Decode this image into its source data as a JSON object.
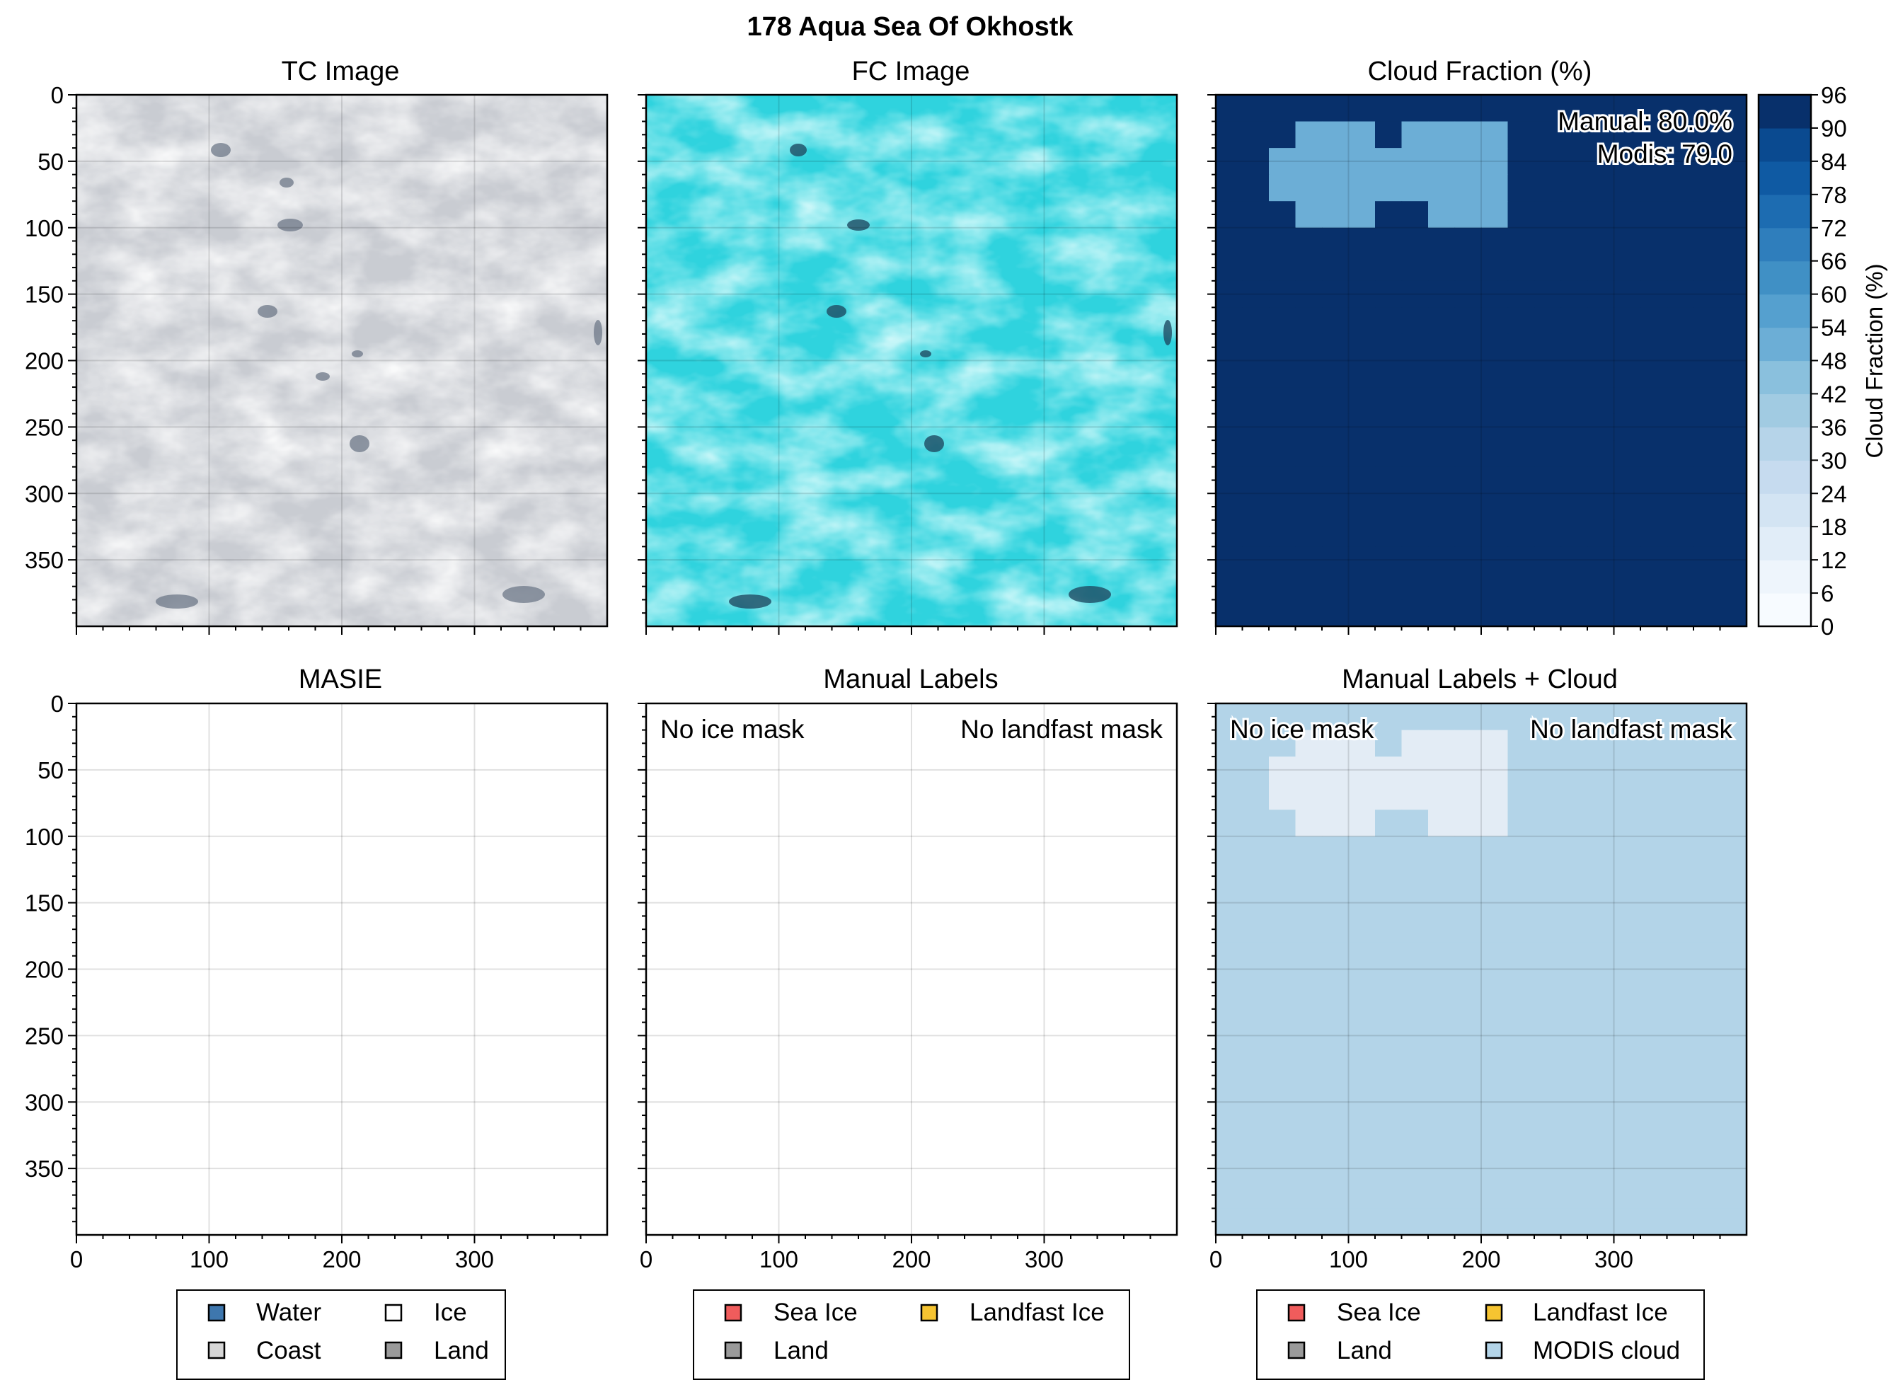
{
  "figure": {
    "title": "178 Aqua Sea Of Okhostk"
  },
  "panels": {
    "tc": {
      "title": "TC Image"
    },
    "fc": {
      "title": "FC Image"
    },
    "cloud": {
      "title": "Cloud Fraction (%)",
      "manual_note": "Manual: 80.0%",
      "modis_note": "Modis: 79.0",
      "colorbar_label": "Cloud Fraction (%)"
    },
    "masie": {
      "title": "MASIE"
    },
    "manual": {
      "title": "Manual Labels",
      "ice_note": "No ice mask",
      "landfast_note": "No landfast mask"
    },
    "manual_cloud": {
      "title": "Manual Labels + Cloud",
      "ice_note": "No ice mask",
      "landfast_note": "No landfast mask"
    }
  },
  "legends": {
    "masie": [
      {
        "label": "Water",
        "color": "#3e77ae"
      },
      {
        "label": "Ice",
        "color": "#ffffff"
      },
      {
        "label": "Coast",
        "color": "#d6d6d6"
      },
      {
        "label": "Land",
        "color": "#9a9a9a"
      }
    ],
    "manual": [
      {
        "label": "Sea Ice",
        "color": "#f05c5c"
      },
      {
        "label": "Landfast Ice",
        "color": "#f6c431"
      },
      {
        "label": "Land",
        "color": "#9a9a9a"
      }
    ],
    "manual_cloud": [
      {
        "label": "Sea Ice",
        "color": "#f05c5c"
      },
      {
        "label": "Landfast Ice",
        "color": "#f6c431"
      },
      {
        "label": "Land",
        "color": "#9a9a9a"
      },
      {
        "label": "MODIS cloud",
        "color": "#b3d4e8"
      }
    ]
  },
  "chart_data": {
    "type": "heatmap",
    "title": "Cloud Fraction (%)",
    "x_ticks": [
      "0",
      "100",
      "200",
      "300"
    ],
    "y_ticks": [
      "0",
      "50",
      "100",
      "150",
      "200",
      "250",
      "300",
      "350"
    ],
    "xlim": [
      0,
      400
    ],
    "ylim": [
      400,
      0
    ],
    "grid": true,
    "colorbar": {
      "label": "Cloud Fraction (%)",
      "ticks": [
        "0",
        "6",
        "12",
        "18",
        "24",
        "30",
        "36",
        "42",
        "48",
        "54",
        "60",
        "66",
        "72",
        "78",
        "84",
        "90",
        "96"
      ],
      "range": [
        0,
        96
      ],
      "colors": [
        "#f7fbff",
        "#eef5fc",
        "#e1edf8",
        "#d3e4f3",
        "#c6dbef",
        "#b6d4e9",
        "#a1cbe2",
        "#8ac0dd",
        "#6caed6",
        "#55a0cf",
        "#4090c5",
        "#2f7ebc",
        "#1d6cb1",
        "#0f5aa3",
        "#0a4a90",
        "#08306b"
      ]
    },
    "cell_size": 20,
    "cloud_fraction_grid": [
      [
        96,
        96,
        96,
        96,
        96,
        96,
        96,
        96,
        96,
        96,
        96,
        96,
        96,
        96,
        96,
        96,
        96,
        96,
        96,
        96
      ],
      [
        96,
        96,
        96,
        50,
        50,
        50,
        96,
        50,
        50,
        50,
        50,
        96,
        96,
        96,
        96,
        96,
        96,
        96,
        96,
        96
      ],
      [
        96,
        96,
        50,
        50,
        50,
        50,
        50,
        50,
        50,
        50,
        50,
        96,
        96,
        96,
        96,
        96,
        96,
        96,
        96,
        96
      ],
      [
        96,
        96,
        50,
        50,
        50,
        50,
        50,
        50,
        50,
        50,
        50,
        96,
        96,
        96,
        96,
        96,
        96,
        96,
        96,
        96
      ],
      [
        96,
        96,
        96,
        50,
        50,
        50,
        96,
        96,
        50,
        50,
        50,
        96,
        96,
        96,
        96,
        96,
        96,
        96,
        96,
        96
      ],
      [
        96,
        96,
        96,
        96,
        96,
        96,
        96,
        96,
        96,
        96,
        96,
        96,
        96,
        96,
        96,
        96,
        96,
        96,
        96,
        96
      ],
      [
        96,
        96,
        96,
        96,
        96,
        96,
        96,
        96,
        96,
        96,
        96,
        96,
        96,
        96,
        96,
        96,
        96,
        96,
        96,
        96
      ],
      [
        96,
        96,
        96,
        96,
        96,
        96,
        96,
        96,
        96,
        96,
        96,
        96,
        96,
        96,
        96,
        96,
        96,
        96,
        96,
        96
      ],
      [
        96,
        96,
        96,
        96,
        96,
        96,
        96,
        96,
        96,
        96,
        96,
        96,
        96,
        96,
        96,
        96,
        96,
        96,
        96,
        96
      ],
      [
        96,
        96,
        96,
        96,
        96,
        96,
        96,
        96,
        96,
        96,
        96,
        96,
        96,
        96,
        96,
        96,
        96,
        96,
        96,
        96
      ],
      [
        96,
        96,
        96,
        96,
        96,
        96,
        96,
        96,
        96,
        96,
        96,
        96,
        96,
        96,
        96,
        96,
        96,
        96,
        96,
        96
      ],
      [
        96,
        96,
        96,
        96,
        96,
        96,
        96,
        96,
        96,
        96,
        96,
        96,
        96,
        96,
        96,
        96,
        96,
        96,
        96,
        96
      ],
      [
        96,
        96,
        96,
        96,
        96,
        96,
        96,
        96,
        96,
        96,
        96,
        96,
        96,
        96,
        96,
        96,
        96,
        96,
        96,
        96
      ],
      [
        96,
        96,
        96,
        96,
        96,
        96,
        96,
        96,
        96,
        96,
        96,
        96,
        96,
        96,
        96,
        96,
        96,
        96,
        96,
        96
      ],
      [
        96,
        96,
        96,
        96,
        96,
        96,
        96,
        96,
        96,
        96,
        96,
        96,
        96,
        96,
        96,
        96,
        96,
        96,
        96,
        96
      ],
      [
        96,
        96,
        96,
        96,
        96,
        96,
        96,
        96,
        96,
        96,
        96,
        96,
        96,
        96,
        96,
        96,
        96,
        96,
        96,
        96
      ],
      [
        96,
        96,
        96,
        96,
        96,
        96,
        96,
        96,
        96,
        96,
        96,
        96,
        96,
        96,
        96,
        96,
        96,
        96,
        96,
        96
      ],
      [
        96,
        96,
        96,
        96,
        96,
        96,
        96,
        96,
        96,
        96,
        96,
        96,
        96,
        96,
        96,
        96,
        96,
        96,
        96,
        96
      ],
      [
        96,
        96,
        96,
        96,
        96,
        96,
        96,
        96,
        96,
        96,
        96,
        96,
        96,
        96,
        96,
        96,
        96,
        96,
        96,
        96
      ],
      [
        96,
        96,
        96,
        96,
        96,
        96,
        96,
        96,
        96,
        96,
        96,
        96,
        96,
        96,
        96,
        96,
        96,
        96,
        96,
        96
      ]
    ]
  }
}
